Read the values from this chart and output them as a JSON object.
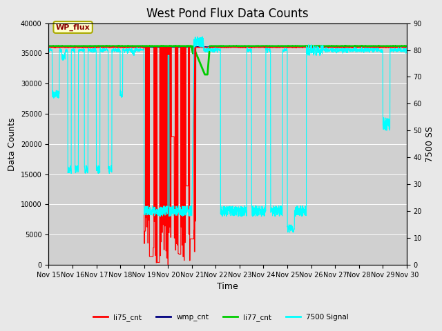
{
  "title": "West Pond Flux Data Counts",
  "xlabel": "Time",
  "ylabel_left": "Data Counts",
  "ylabel_right": "7500 SS",
  "xtick_labels": [
    "Nov 15",
    "Nov 16",
    "Nov 17",
    "Nov 18",
    "Nov 19",
    "Nov 20",
    "Nov 21",
    "Nov 22",
    "Nov 23",
    "Nov 24",
    "Nov 25",
    "Nov 26",
    "Nov 27",
    "Nov 28",
    "Nov 29",
    "Nov 30"
  ],
  "ylim_left": [
    0,
    40000
  ],
  "ylim_right": [
    0,
    90
  ],
  "yticks_left": [
    0,
    5000,
    10000,
    15000,
    20000,
    25000,
    30000,
    35000,
    40000
  ],
  "yticks_right": [
    0,
    10,
    20,
    30,
    40,
    50,
    60,
    70,
    80,
    90
  ],
  "fig_bg_color": "#e8e8e8",
  "plot_bg_color": "#d0d0d0",
  "grid_color": "white",
  "annotation_text": "WP_flux",
  "annotation_bg": "#ffffcc",
  "annotation_border": "#aaaa00",
  "li75_color": "red",
  "wmp_color": "#000080",
  "li77_color": "#00cc00",
  "signal7500_color": "cyan",
  "title_fontsize": 12,
  "tick_fontsize": 7,
  "label_fontsize": 9
}
